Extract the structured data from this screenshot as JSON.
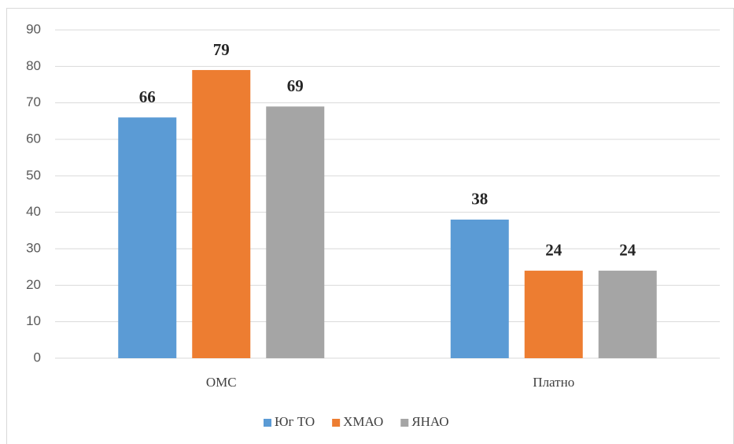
{
  "chart_data": {
    "type": "bar",
    "categories": [
      "ОМС",
      "Платно"
    ],
    "series": [
      {
        "name": "Юг ТО",
        "color": "#5b9bd5",
        "values": [
          66,
          38
        ]
      },
      {
        "name": "ХМАО",
        "color": "#ed7d31",
        "values": [
          79,
          24
        ]
      },
      {
        "name": "ЯНАО",
        "color": "#a5a5a5",
        "values": [
          69,
          24
        ]
      }
    ],
    "ylim": [
      0,
      90
    ],
    "yticks": [
      0,
      10,
      20,
      30,
      40,
      50,
      60,
      70,
      80,
      90
    ],
    "grid": true,
    "legend": "bottom"
  }
}
